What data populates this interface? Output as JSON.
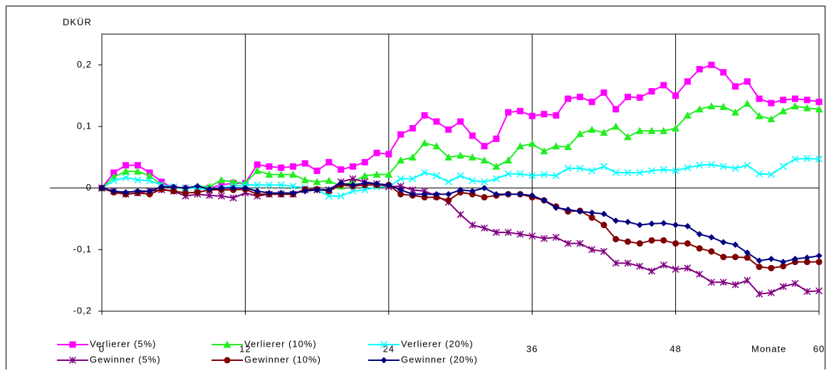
{
  "chart_data": {
    "type": "line",
    "y_label": "DKÜR",
    "x_label": "Monate",
    "x": [
      0,
      1,
      2,
      3,
      4,
      5,
      6,
      7,
      8,
      9,
      10,
      11,
      12,
      13,
      14,
      15,
      16,
      17,
      18,
      19,
      20,
      21,
      22,
      23,
      24,
      25,
      26,
      27,
      28,
      29,
      30,
      31,
      32,
      33,
      34,
      35,
      36,
      37,
      38,
      39,
      40,
      41,
      42,
      43,
      44,
      45,
      46,
      47,
      48,
      49,
      50,
      51,
      52,
      53,
      54,
      55,
      56,
      57,
      58,
      59,
      60
    ],
    "xlim": [
      0,
      60
    ],
    "xticks": [
      0,
      12,
      24,
      36,
      48,
      60
    ],
    "ylim": [
      -0.2,
      0.25
    ],
    "yticks": [
      {
        "value": -0.2,
        "label": "-0,2"
      },
      {
        "value": -0.1,
        "label": "-0,1"
      },
      0,
      {
        "value": 0.1,
        "label": "0,1"
      },
      {
        "value": 0.2,
        "label": "0,2"
      }
    ],
    "grid": "x",
    "legend": "bottom",
    "series": [
      {
        "name": "Verlierer (5%)",
        "color": "#ff00ff",
        "marker": "square",
        "values": [
          0,
          0.025,
          0.037,
          0.037,
          0.025,
          0.01,
          0,
          0,
          0,
          0,
          0.005,
          0.008,
          0.008,
          0.038,
          0.035,
          0.033,
          0.035,
          0.04,
          0.028,
          0.042,
          0.03,
          0.035,
          0.042,
          0.057,
          0.055,
          0.087,
          0.097,
          0.118,
          0.108,
          0.095,
          0.108,
          0.085,
          0.068,
          0.08,
          0.123,
          0.125,
          0.117,
          0.12,
          0.118,
          0.145,
          0.148,
          0.14,
          0.155,
          0.128,
          0.148,
          0.147,
          0.157,
          0.167,
          0.15,
          0.173,
          0.193,
          0.2,
          0.188,
          0.165,
          0.173,
          0.145,
          0.138,
          0.143,
          0.145,
          0.143,
          0.14
        ]
      },
      {
        "name": "Verlierer (10%)",
        "color": "#22ee22",
        "marker": "triangle",
        "values": [
          0,
          0.018,
          0.027,
          0.027,
          0.02,
          0.005,
          0,
          0,
          0.003,
          0.002,
          0.013,
          0.01,
          0.008,
          0.028,
          0.022,
          0.022,
          0.022,
          0.013,
          0.01,
          0.012,
          0.003,
          0.01,
          0.02,
          0.022,
          0.022,
          0.045,
          0.05,
          0.073,
          0.068,
          0.05,
          0.053,
          0.05,
          0.045,
          0.035,
          0.045,
          0.068,
          0.072,
          0.06,
          0.068,
          0.067,
          0.088,
          0.095,
          0.09,
          0.1,
          0.083,
          0.093,
          0.093,
          0.093,
          0.097,
          0.118,
          0.128,
          0.133,
          0.132,
          0.123,
          0.137,
          0.117,
          0.112,
          0.125,
          0.133,
          0.13,
          0.128
        ]
      },
      {
        "name": "Verlierer (20%)",
        "color": "#00ffff",
        "marker": "cross",
        "values": [
          0,
          0.012,
          0.017,
          0.013,
          0.012,
          0.005,
          0.002,
          0,
          0,
          -0.003,
          0,
          0.003,
          0.005,
          0.005,
          0.005,
          0.005,
          0.003,
          0,
          -0.003,
          -0.013,
          -0.013,
          -0.005,
          -0.003,
          0.002,
          0.002,
          0.015,
          0.015,
          0.025,
          0.02,
          0.01,
          0.02,
          0.012,
          0.01,
          0.015,
          0.023,
          0.023,
          0.02,
          0.022,
          0.02,
          0.032,
          0.032,
          0.028,
          0.035,
          0.025,
          0.025,
          0.025,
          0.028,
          0.03,
          0.028,
          0.033,
          0.037,
          0.038,
          0.035,
          0.032,
          0.037,
          0.023,
          0.022,
          0.035,
          0.047,
          0.048,
          0.047
        ]
      },
      {
        "name": "Gewinner (5%)",
        "color": "#800080",
        "marker": "star",
        "values": [
          0,
          -0.005,
          -0.01,
          -0.008,
          -0.005,
          -0.003,
          -0.005,
          -0.013,
          -0.01,
          -0.012,
          -0.013,
          -0.016,
          -0.008,
          -0.013,
          -0.01,
          -0.01,
          -0.01,
          -0.003,
          -0.003,
          -0.003,
          0.01,
          0.015,
          0.01,
          0.007,
          0.002,
          0.003,
          -0.003,
          -0.005,
          -0.013,
          -0.023,
          -0.043,
          -0.06,
          -0.065,
          -0.072,
          -0.072,
          -0.075,
          -0.078,
          -0.082,
          -0.08,
          -0.09,
          -0.09,
          -0.1,
          -0.103,
          -0.122,
          -0.122,
          -0.127,
          -0.135,
          -0.125,
          -0.132,
          -0.13,
          -0.14,
          -0.153,
          -0.153,
          -0.157,
          -0.15,
          -0.172,
          -0.17,
          -0.16,
          -0.155,
          -0.168,
          -0.167
        ]
      },
      {
        "name": "Gewinner (10%)",
        "color": "#800000",
        "marker": "circle",
        "values": [
          0,
          -0.007,
          -0.01,
          -0.008,
          -0.01,
          -0.002,
          -0.005,
          -0.008,
          -0.007,
          -0.003,
          -0.003,
          -0.003,
          -0.002,
          -0.01,
          -0.01,
          -0.01,
          -0.01,
          -0.002,
          -0.002,
          -0.005,
          0.005,
          0.003,
          0.005,
          0.005,
          0.005,
          -0.01,
          -0.012,
          -0.015,
          -0.015,
          -0.02,
          -0.007,
          -0.01,
          -0.015,
          -0.012,
          -0.01,
          -0.01,
          -0.015,
          -0.02,
          -0.03,
          -0.038,
          -0.037,
          -0.048,
          -0.06,
          -0.083,
          -0.087,
          -0.09,
          -0.085,
          -0.085,
          -0.09,
          -0.09,
          -0.098,
          -0.103,
          -0.112,
          -0.112,
          -0.113,
          -0.128,
          -0.13,
          -0.127,
          -0.12,
          -0.12,
          -0.12
        ]
      },
      {
        "name": "Gewinner (20%)",
        "color": "#000080",
        "marker": "diamond",
        "values": [
          0,
          -0.005,
          -0.007,
          -0.005,
          -0.005,
          0.002,
          0.002,
          0,
          0.003,
          -0.002,
          0,
          0,
          0,
          -0.005,
          -0.008,
          -0.008,
          -0.008,
          -0.005,
          -0.003,
          -0.003,
          0.008,
          0.005,
          0.008,
          0.007,
          0.005,
          -0.003,
          -0.01,
          -0.01,
          -0.01,
          -0.01,
          -0.003,
          -0.005,
          0,
          -0.01,
          -0.01,
          -0.01,
          -0.012,
          -0.02,
          -0.032,
          -0.035,
          -0.038,
          -0.04,
          -0.042,
          -0.053,
          -0.055,
          -0.06,
          -0.058,
          -0.057,
          -0.06,
          -0.062,
          -0.075,
          -0.08,
          -0.088,
          -0.092,
          -0.105,
          -0.118,
          -0.115,
          -0.12,
          -0.115,
          -0.113,
          -0.11
        ]
      }
    ]
  }
}
